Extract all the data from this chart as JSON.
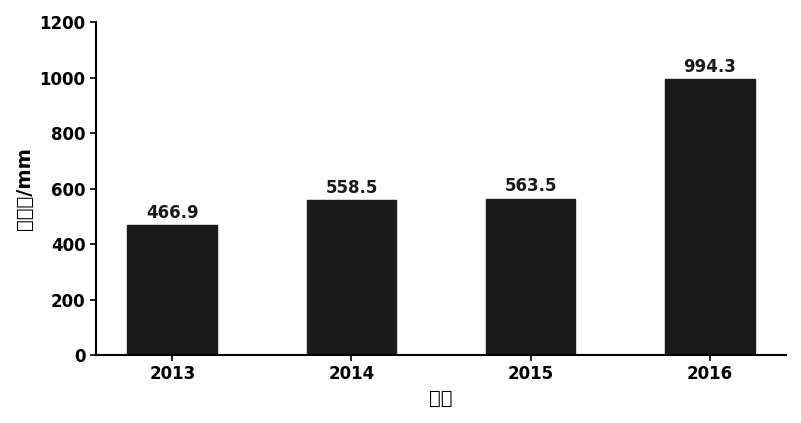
{
  "categories": [
    "2013",
    "2014",
    "2015",
    "2016"
  ],
  "values": [
    466.9,
    558.5,
    563.5,
    994.3
  ],
  "bar_color": "#1a1a1a",
  "bar_width": 0.5,
  "xlabel": "年份",
  "ylabel": "降雨量/mm",
  "ylim": [
    0,
    1200
  ],
  "yticks": [
    0,
    200,
    400,
    600,
    800,
    1000,
    1200
  ],
  "label_fontsize": 14,
  "tick_fontsize": 12,
  "annotation_fontsize": 12,
  "background_color": "#ffffff"
}
